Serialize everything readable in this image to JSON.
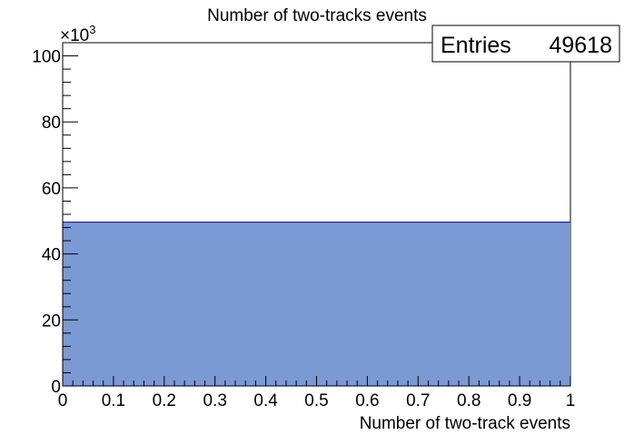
{
  "chart_data": {
    "type": "bar",
    "title": "Number of two-tracks events",
    "xlabel": "Number of two-track events",
    "ylabel": "",
    "exponent_label": "×10",
    "exponent_power": "3",
    "xlim": [
      0,
      1
    ],
    "ylim": [
      0,
      104
    ],
    "x_ticks": [
      "0",
      "0.1",
      "0.2",
      "0.3",
      "0.4",
      "0.5",
      "0.6",
      "0.7",
      "0.8",
      "0.9",
      "1"
    ],
    "y_ticks": [
      "0",
      "20",
      "40",
      "60",
      "80",
      "100"
    ],
    "y_tick_values": [
      0,
      20,
      40,
      60,
      80,
      100
    ],
    "bins": [
      {
        "x_low": 0,
        "x_high": 1,
        "value": 49.618
      }
    ],
    "stats_box": {
      "label": "Entries",
      "value": "49618"
    },
    "fill_color": "#7b99d2",
    "line_color": "#000080",
    "grid": false
  }
}
